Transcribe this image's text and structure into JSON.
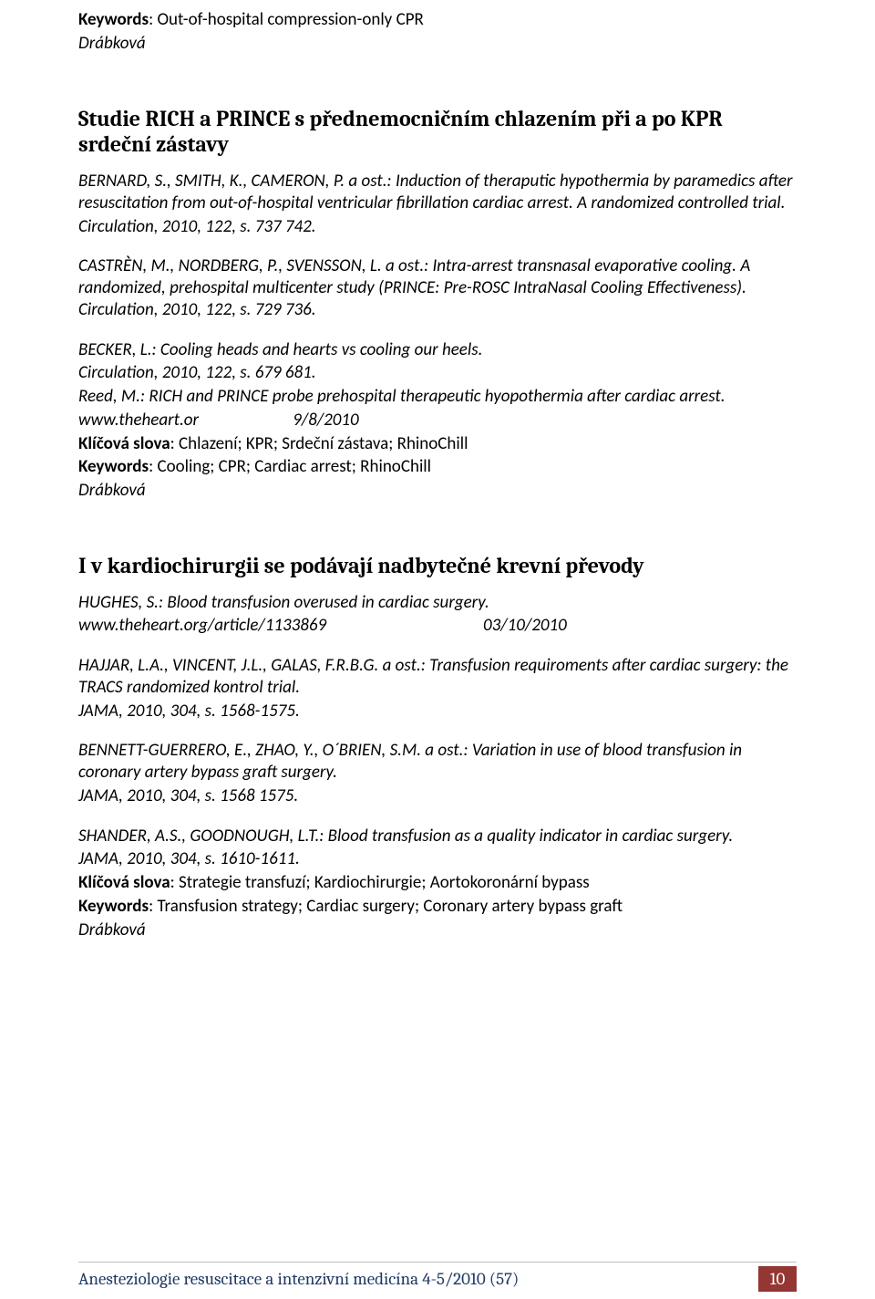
{
  "fonts": {
    "body_family": "Calibri",
    "heading_family": "Cambria",
    "body_size_pt": 14,
    "heading_size_pt": 18
  },
  "colors": {
    "text": "#000000",
    "background": "#ffffff",
    "footer_rule": "#bfbfbf",
    "footer_text": "#1f3864",
    "pagenum_bg": "#943634",
    "pagenum_text": "#ffffff"
  },
  "top": {
    "keywords_label": "Keywords",
    "keywords_value": ": Out-of-hospital compression-only CPR",
    "author": "Drábková"
  },
  "heading1": "Studie RICH a PRINCE s přednemocničním chlazením při a po KPR srdeční zástavy",
  "block1": {
    "p1": "BERNARD, S., SMITH, K., CAMERON, P. a ost.: Induction of theraputic hypothermia by paramedics after resuscitation from out-of-hospital ventricular fibrillation cardiac arrest. A randomized controlled trial.",
    "p1b": "Circulation, 2010, 122, s. 737 742.",
    "p2": "CASTRÈN, M., NORDBERG, P., SVENSSON, L. a ost.:  Intra-arrest transnasal evaporative cooling. A randomized, prehospital multicenter study (PRINCE: Pre-ROSC IntraNasal Cooling Effectiveness). Circulation, 2010, 122, s. 729 736.",
    "p3a": "BECKER, L.: Cooling heads and hearts vs cooling our heels.",
    "p3b": "Circulation, 2010, 122, s. 679 681.",
    "p3c": "Reed, M.: RICH and PRINCE probe prehospital therapeutic hyopothermia after cardiac arrest.",
    "p3d_site": "www.theheart.or",
    "p3d_date": "9/8/2010",
    "klic_label": "Klíčová slova",
    "klic_value": ": Chlazení; KPR; Srdeční zástava; RhinoChill",
    "kw_label": "Keywords",
    "kw_value": ": Cooling; CPR; Cardiac arrest; RhinoChill",
    "author": "Drábková"
  },
  "heading2": "I v kardiochirurgii se podávají nadbytečné krevní převody",
  "block2": {
    "p1a": "HUGHES, S.: Blood transfusion overused in cardiac surgery.",
    "p1b_site": "www.theheart.org/article/1133869",
    "p1b_date": "03/10/2010",
    "p2a": "HAJJAR, L.A., VINCENT, J.L., GALAS, F.R.B.G. a ost.: Transfusion requiroments after cardiac surgery: the TRACS randomized kontrol trial.",
    "p2b": "JAMA, 2010, 304, s. 1568-1575.",
    "p3a": "BENNETT-GUERRERO, E., ZHAO, Y., O´BRIEN, S.M. a ost.: Variation in use of blood transfusion in coronary artery bypass graft surgery.",
    "p3b": "JAMA, 2010, 304, s. 1568 1575.",
    "p4a": "SHANDER, A.S., GOODNOUGH, L.T.: Blood transfusion as a quality indicator in cardiac surgery.",
    "p4b": "JAMA, 2010, 304, s. 1610-1611.",
    "klic_label": "Klíčová slova",
    "klic_value": ": Strategie transfuzí; Kardiochirurgie; Aortokoronární bypass",
    "kw_label": "Keywords",
    "kw_value": ": Transfusion strategy; Cardiac surgery; Coronary artery bypass graft",
    "author": "Drábková"
  },
  "footer": {
    "text": "Anesteziologie resuscitace a intenzivní medicína  4-5/2010 (57)",
    "page": "10"
  }
}
